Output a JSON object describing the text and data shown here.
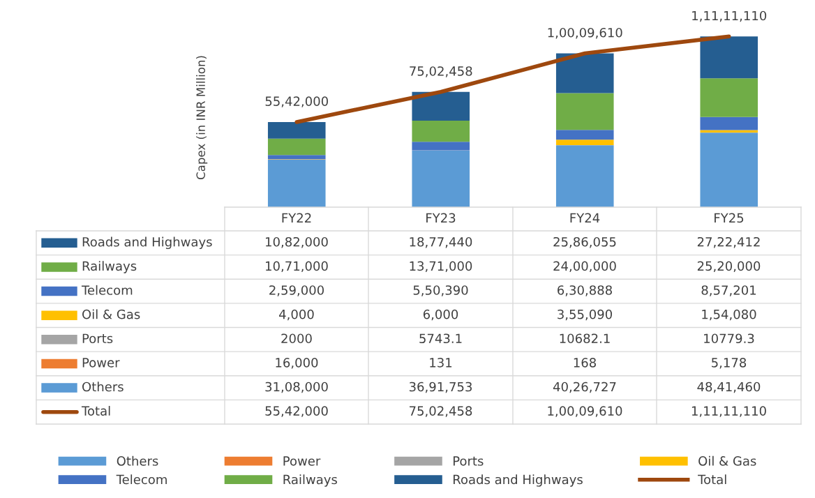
{
  "chart_data": {
    "type": "bar",
    "stacked": true,
    "ylabel": "Capex (in INR Million)",
    "categories": [
      "FY22",
      "FY23",
      "FY24",
      "FY25"
    ],
    "legend": "bottom",
    "series": [
      {
        "name": "Others",
        "color": "#5b9bd5",
        "values": [
          3108000,
          3691753,
          4026727,
          4841460
        ],
        "value_labels": [
          "31,08,000",
          "36,91,753",
          "40,26,727",
          "48,41,460"
        ]
      },
      {
        "name": "Power",
        "color": "#ed7d31",
        "values": [
          16000,
          131,
          168,
          5178
        ],
        "value_labels": [
          "16,000",
          "131",
          "168",
          "5,178"
        ]
      },
      {
        "name": "Ports",
        "color": "#a5a5a5",
        "values": [
          2000,
          5743.1,
          10682.1,
          10779.3
        ],
        "value_labels": [
          "2000",
          "5743.1",
          "10682.1",
          "10779.3"
        ]
      },
      {
        "name": "Oil & Gas",
        "color": "#ffc000",
        "values": [
          4000,
          6000,
          355090,
          154080
        ],
        "value_labels": [
          "4,000",
          "6,000",
          "3,55,090",
          "1,54,080"
        ]
      },
      {
        "name": "Telecom",
        "color": "#4472c4",
        "values": [
          259000,
          550390,
          630888,
          857201
        ],
        "value_labels": [
          "2,59,000",
          "5,50,390",
          "6,30,888",
          "8,57,201"
        ]
      },
      {
        "name": "Railways",
        "color": "#70ad47",
        "values": [
          1071000,
          1371000,
          2400000,
          2520000
        ],
        "value_labels": [
          "10,71,000",
          "13,71,000",
          "24,00,000",
          "25,20,000"
        ]
      },
      {
        "name": "Roads and Highways",
        "color": "#255e91",
        "values": [
          1082000,
          1877440,
          2586055,
          2722412
        ],
        "value_labels": [
          "10,82,000",
          "18,77,440",
          "25,86,055",
          "27,22,412"
        ]
      },
      {
        "name": "Total",
        "type": "line",
        "color": "#9e480e",
        "values": [
          5542000,
          7502458,
          10009610,
          11111110
        ],
        "value_labels": [
          "55,42,000",
          "75,02,458",
          "1,00,09,610",
          "1,11,11,110"
        ]
      }
    ]
  }
}
